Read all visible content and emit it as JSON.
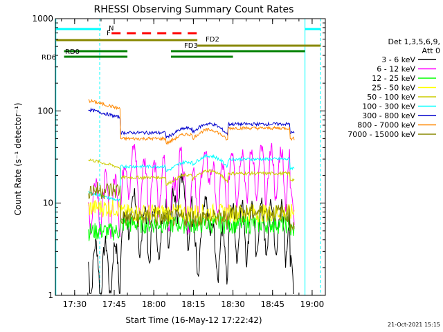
{
  "chart_data": {
    "type": "line",
    "title": "RHESSI Observing Summary Count Rates",
    "xlabel": "Start Time (16-May-12 17:22:42)",
    "ylabel": "Count Rate (s⁻¹ detector⁻¹)",
    "yscale": "log",
    "ylim": [
      1,
      1000
    ],
    "xlim_minutes": [
      1042.7,
      1145
    ],
    "x_ticks": [
      {
        "v": 1050,
        "label": "17:30"
      },
      {
        "v": 1065,
        "label": "17:45"
      },
      {
        "v": 1080,
        "label": "18:00"
      },
      {
        "v": 1095,
        "label": "18:15"
      },
      {
        "v": 1110,
        "label": "18:30"
      },
      {
        "v": 1125,
        "label": "18:45"
      },
      {
        "v": 1140,
        "label": "19:00"
      }
    ],
    "y_ticks": [
      {
        "v": 1,
        "label": "1"
      },
      {
        "v": 10,
        "label": "10"
      },
      {
        "v": 100,
        "label": "100"
      },
      {
        "v": 1000,
        "label": "1000"
      }
    ],
    "legend_title": [
      "Det 1,3,5,6,9,",
      "Att 0"
    ],
    "legend_position": "right",
    "series": [
      {
        "name": "3 - 6 keV",
        "color": "#000000",
        "values": [
          2.3,
          5.5,
          9.0,
          3.5,
          6.0,
          1.4
        ]
      },
      {
        "name": "6 - 12 keV",
        "color": "#ff00ff",
        "values": [
          12,
          18,
          12,
          16,
          24,
          10
        ]
      },
      {
        "name": "12 - 25 keV",
        "color": "#00ff00",
        "values": [
          5,
          6,
          6,
          6,
          6,
          5
        ]
      },
      {
        "name": "25 - 50 keV",
        "color": "#ffff00",
        "values": [
          9,
          8,
          8,
          8,
          8,
          8
        ]
      },
      {
        "name": "50 - 100 keV",
        "color": "#cccc00",
        "values": [
          23,
          19,
          18,
          18,
          21,
          18
        ]
      },
      {
        "name": "100 - 300 keV",
        "color": "#00ffff",
        "values": [
          10,
          25,
          25,
          26,
          30,
          24
        ]
      },
      {
        "name": "300 - 800 keV",
        "color": "#0000cc",
        "values": [
          80,
          58,
          58,
          58,
          72,
          58
        ]
      },
      {
        "name": "800 - 7000 keV",
        "color": "#ff8800",
        "values": [
          100,
          50,
          50,
          50,
          65,
          50
        ]
      },
      {
        "name": "7000 - 15000 keV",
        "color": "#888800",
        "values": [
          14,
          7,
          7,
          7,
          8,
          6
        ]
      }
    ],
    "flag_labels": {
      "N": "N",
      "F": "F",
      "FD2": "FD2",
      "FD3": "FD3",
      "RD0": "RD0",
      "RD6": "RD6"
    },
    "timestamp": "21-Oct-2021 15:15"
  }
}
